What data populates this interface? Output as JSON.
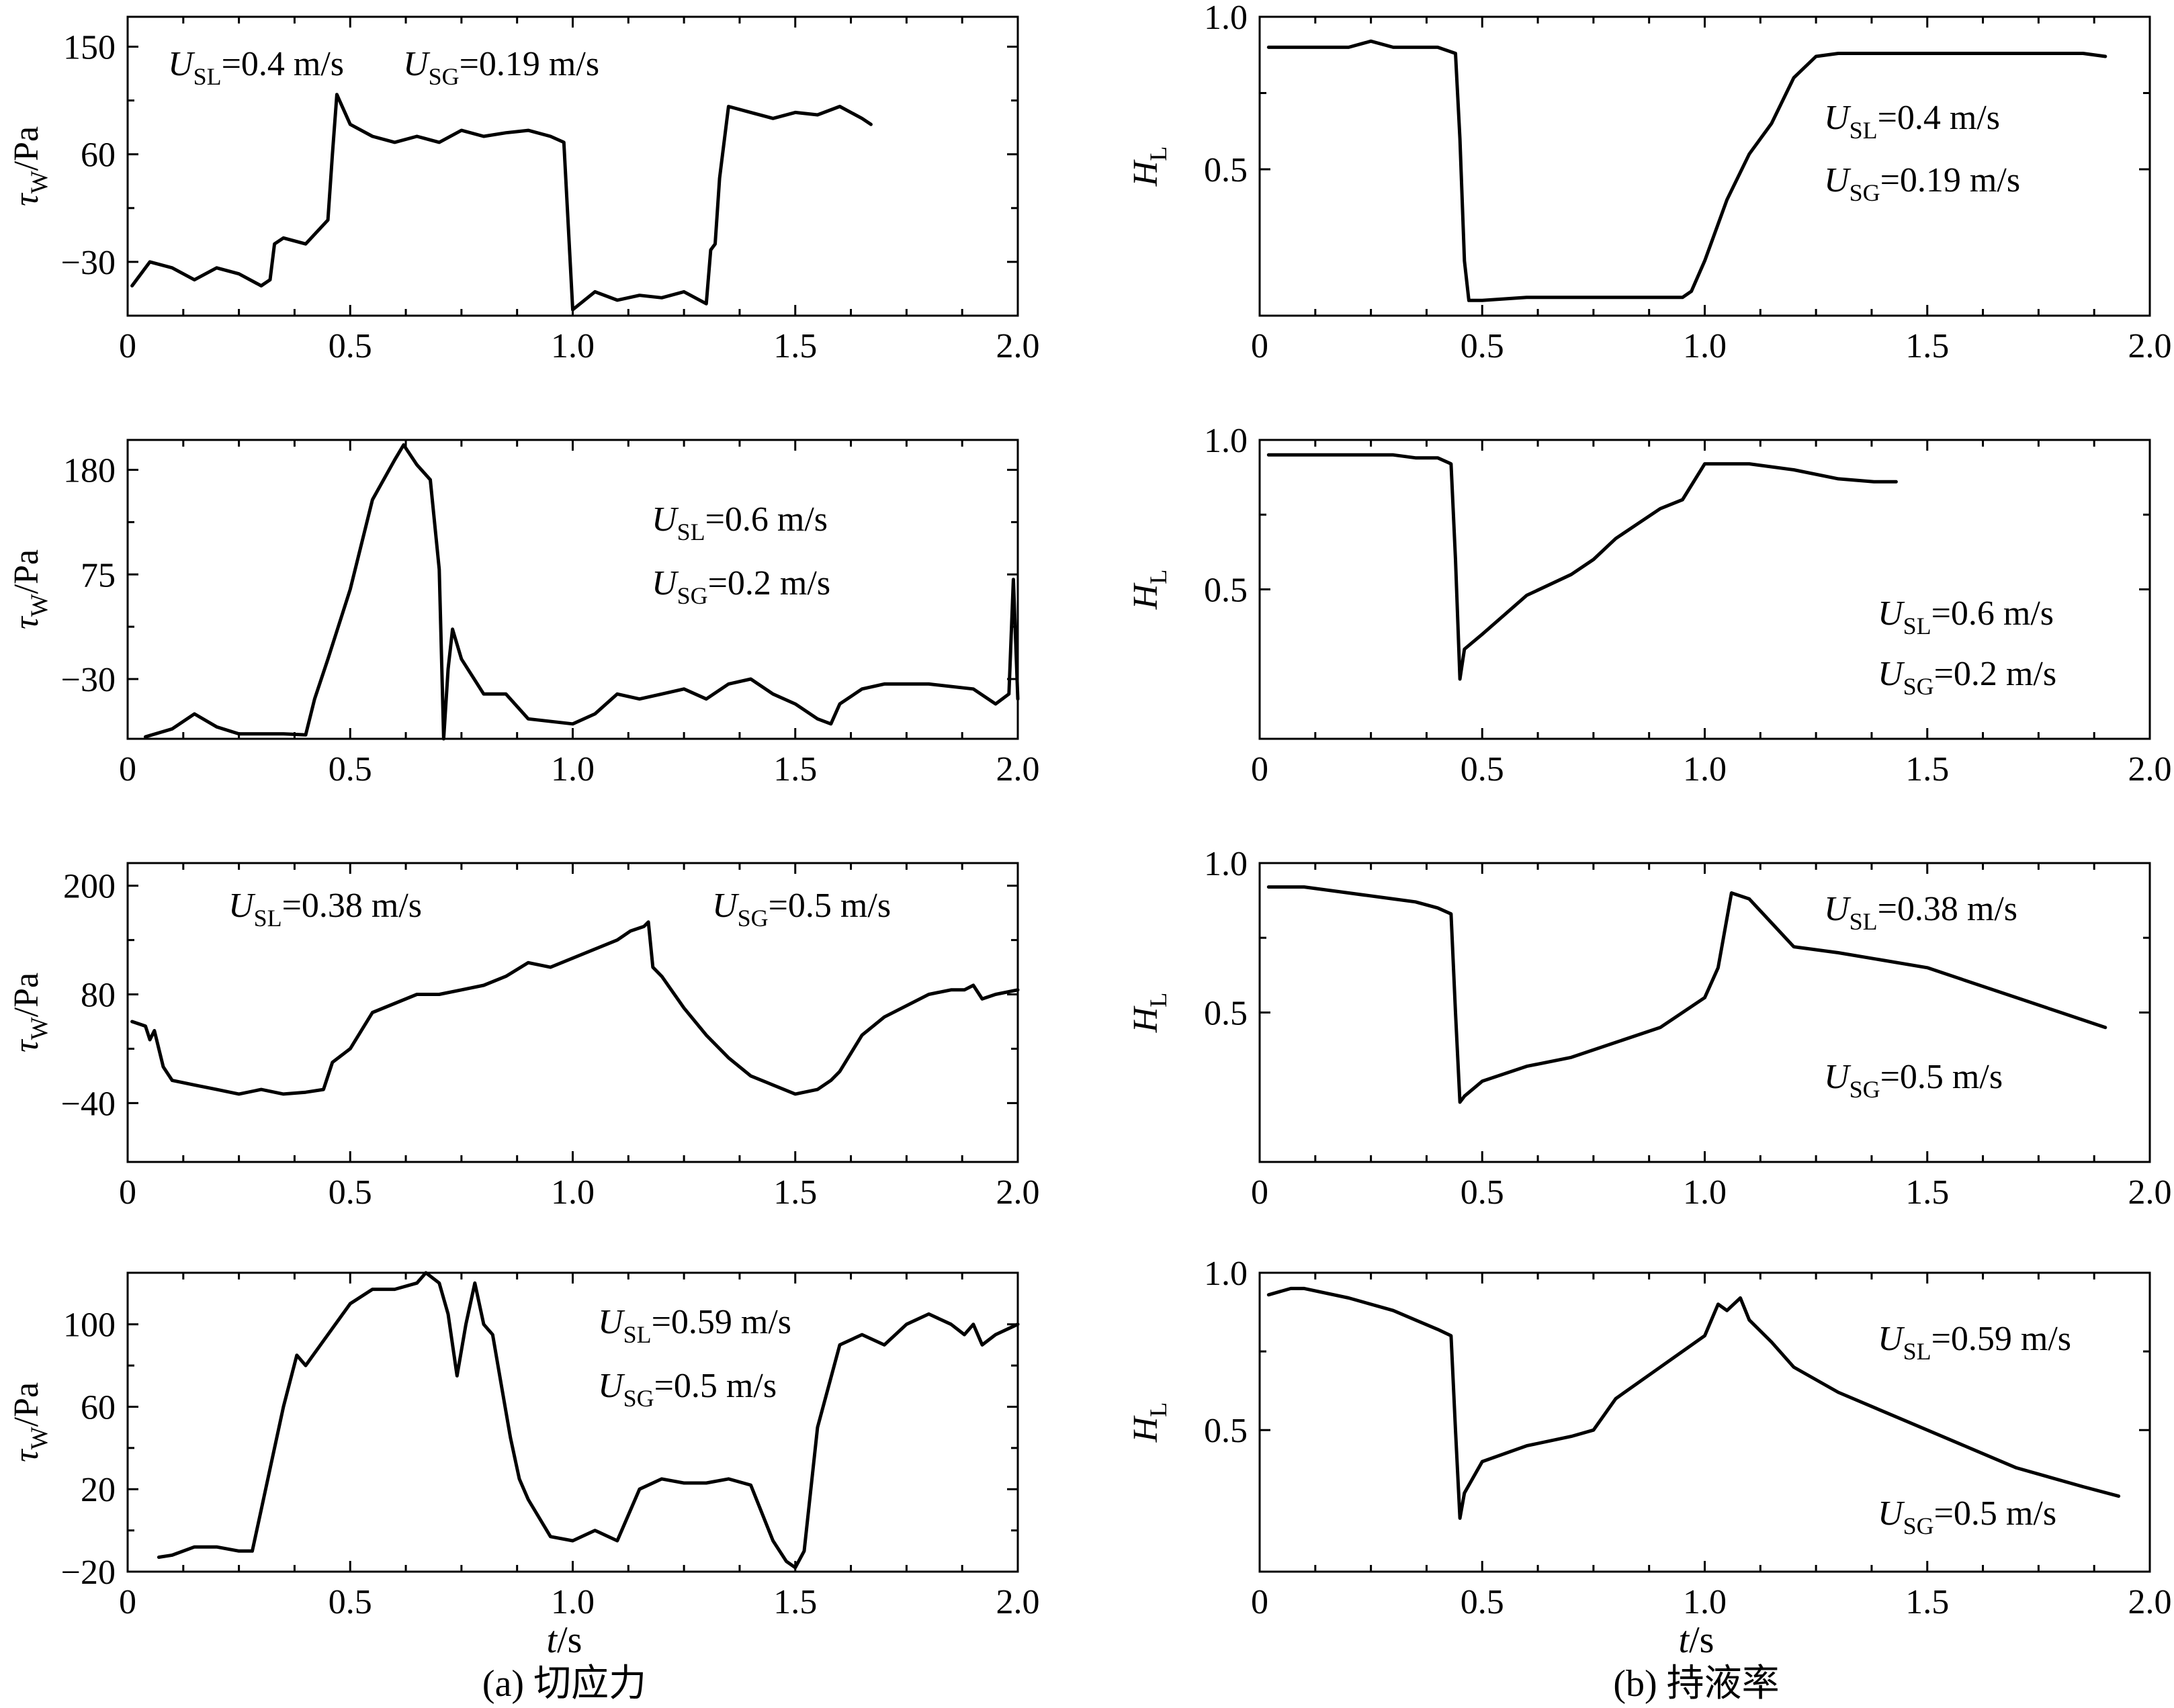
{
  "figure": {
    "xlabel_var": "t",
    "xlabel_unit": "/s",
    "caption_left": "(a) 切应力",
    "caption_right": "(b) 持液率"
  },
  "chart_data": [
    {
      "type": "line",
      "panel": "a1",
      "ylabel_main": "τ",
      "ylabel_sub": "W",
      "ylabel_unit": "/Pa",
      "xlim": [
        0,
        2.0
      ],
      "ylim": [
        -75,
        175
      ],
      "xticks": [
        0,
        0.5,
        1.0,
        1.5,
        2.0
      ],
      "xtick_labels": [
        "0",
        "0.5",
        "1.0",
        "1.5",
        "2.0"
      ],
      "yticks": [
        -30,
        60,
        150
      ],
      "ytick_labels": [
        "−30",
        "60",
        "150"
      ],
      "annotations": [
        {
          "var": "U",
          "sub": "SL",
          "text": "=0.4 m/s",
          "pos": "top-left"
        },
        {
          "var": "U",
          "sub": "SG",
          "text": "=0.19 m/s",
          "pos": "top-center"
        }
      ],
      "x": [
        0.01,
        0.05,
        0.1,
        0.15,
        0.2,
        0.25,
        0.3,
        0.32,
        0.33,
        0.35,
        0.4,
        0.45,
        0.46,
        0.47,
        0.5,
        0.55,
        0.6,
        0.65,
        0.7,
        0.75,
        0.8,
        0.85,
        0.9,
        0.95,
        0.98,
        0.99,
        1.0,
        1.05,
        1.1,
        1.15,
        1.2,
        1.25,
        1.3,
        1.31,
        1.32,
        1.33,
        1.35,
        1.4,
        1.45,
        1.5,
        1.55,
        1.6,
        1.65,
        1.67
      ],
      "y": [
        -50,
        -30,
        -35,
        -45,
        -35,
        -40,
        -50,
        -45,
        -15,
        -10,
        -15,
        5,
        60,
        110,
        85,
        75,
        70,
        75,
        70,
        80,
        75,
        78,
        80,
        75,
        70,
        0,
        -70,
        -55,
        -62,
        -58,
        -60,
        -55,
        -65,
        -20,
        -15,
        40,
        100,
        95,
        90,
        95,
        93,
        100,
        90,
        85
      ]
    },
    {
      "type": "line",
      "panel": "a2",
      "ylabel_main": "τ",
      "ylabel_sub": "W",
      "ylabel_unit": "/Pa",
      "xlim": [
        0,
        2.0
      ],
      "ylim": [
        -90,
        210
      ],
      "xticks": [
        0,
        0.5,
        1.0,
        1.5,
        2.0
      ],
      "xtick_labels": [
        "0",
        "0.5",
        "1.0",
        "1.5",
        "2.0"
      ],
      "yticks": [
        -30,
        75,
        180
      ],
      "ytick_labels": [
        "−30",
        "75",
        "180"
      ],
      "annotations": [
        {
          "var": "U",
          "sub": "SL",
          "text": "=0.6 m/s",
          "pos": "upper-right"
        },
        {
          "var": "U",
          "sub": "SG",
          "text": "=0.2 m/s",
          "pos": "upper-right"
        }
      ],
      "x": [
        0.04,
        0.1,
        0.15,
        0.2,
        0.25,
        0.3,
        0.35,
        0.4,
        0.42,
        0.45,
        0.5,
        0.55,
        0.6,
        0.62,
        0.65,
        0.68,
        0.7,
        0.71,
        0.72,
        0.73,
        0.75,
        0.8,
        0.85,
        0.9,
        1.0,
        1.05,
        1.1,
        1.15,
        1.2,
        1.25,
        1.3,
        1.35,
        1.4,
        1.45,
        1.5,
        1.55,
        1.58,
        1.6,
        1.65,
        1.7,
        1.8,
        1.9,
        1.95,
        1.98,
        1.99,
        2.0
      ],
      "y": [
        -88,
        -80,
        -65,
        -78,
        -85,
        -85,
        -85,
        -86,
        -50,
        -10,
        60,
        150,
        190,
        205,
        185,
        170,
        80,
        -90,
        -20,
        20,
        -10,
        -45,
        -45,
        -70,
        -75,
        -65,
        -45,
        -50,
        -45,
        -40,
        -50,
        -35,
        -30,
        -45,
        -55,
        -70,
        -75,
        -55,
        -40,
        -35,
        -35,
        -40,
        -55,
        -45,
        70,
        -50
      ]
    },
    {
      "type": "line",
      "panel": "a3",
      "ylabel_main": "τ",
      "ylabel_sub": "W",
      "ylabel_unit": "/Pa",
      "xlim": [
        0,
        2.0
      ],
      "ylim": [
        -105,
        225
      ],
      "xticks": [
        0,
        0.5,
        1.0,
        1.5,
        2.0
      ],
      "xtick_labels": [
        "0",
        "0.5",
        "1.0",
        "1.5",
        "2.0"
      ],
      "yticks": [
        -40,
        80,
        200
      ],
      "ytick_labels": [
        "−40",
        "80",
        "200"
      ],
      "annotations": [
        {
          "var": "U",
          "sub": "SL",
          "text": "=0.38 m/s",
          "pos": "top-left"
        },
        {
          "var": "U",
          "sub": "SG",
          "text": "=0.5 m/s",
          "pos": "top-right"
        }
      ],
      "x": [
        0.01,
        0.04,
        0.05,
        0.06,
        0.08,
        0.1,
        0.15,
        0.2,
        0.25,
        0.3,
        0.35,
        0.4,
        0.44,
        0.46,
        0.5,
        0.55,
        0.6,
        0.65,
        0.7,
        0.75,
        0.8,
        0.85,
        0.9,
        0.95,
        1.0,
        1.05,
        1.1,
        1.13,
        1.16,
        1.17,
        1.18,
        1.2,
        1.25,
        1.3,
        1.35,
        1.4,
        1.45,
        1.5,
        1.55,
        1.58,
        1.6,
        1.65,
        1.7,
        1.8,
        1.85,
        1.88,
        1.9,
        1.92,
        1.95,
        2.0
      ],
      "y": [
        50,
        45,
        30,
        40,
        0,
        -15,
        -20,
        -25,
        -30,
        -25,
        -30,
        -28,
        -25,
        5,
        20,
        60,
        70,
        80,
        80,
        85,
        90,
        100,
        115,
        110,
        120,
        130,
        140,
        150,
        155,
        160,
        110,
        100,
        65,
        35,
        10,
        -10,
        -20,
        -30,
        -25,
        -15,
        -5,
        35,
        55,
        80,
        85,
        85,
        90,
        75,
        80,
        85
      ]
    },
    {
      "type": "line",
      "panel": "a4",
      "ylabel_main": "τ",
      "ylabel_sub": "W",
      "ylabel_unit": "/Pa",
      "xlim": [
        0,
        2.0
      ],
      "ylim": [
        -20,
        125
      ],
      "xticks": [
        0,
        0.5,
        1.0,
        1.5,
        2.0
      ],
      "xtick_labels": [
        "0",
        "0.5",
        "1.0",
        "1.5",
        "2.0"
      ],
      "yticks": [
        -20,
        20,
        60,
        100
      ],
      "ytick_labels": [
        "−20",
        "20",
        "60",
        "100"
      ],
      "annotations": [
        {
          "var": "U",
          "sub": "SL",
          "text": "=0.59 m/s",
          "pos": "upper-right"
        },
        {
          "var": "U",
          "sub": "SG",
          "text": "=0.5 m/s",
          "pos": "upper-right"
        }
      ],
      "x": [
        0.07,
        0.1,
        0.15,
        0.2,
        0.25,
        0.28,
        0.3,
        0.32,
        0.35,
        0.38,
        0.4,
        0.45,
        0.5,
        0.55,
        0.6,
        0.65,
        0.67,
        0.7,
        0.72,
        0.74,
        0.76,
        0.78,
        0.8,
        0.82,
        0.84,
        0.86,
        0.88,
        0.9,
        0.95,
        1.0,
        1.05,
        1.1,
        1.15,
        1.2,
        1.25,
        1.3,
        1.35,
        1.4,
        1.45,
        1.48,
        1.5,
        1.52,
        1.55,
        1.6,
        1.65,
        1.7,
        1.75,
        1.8,
        1.85,
        1.88,
        1.9,
        1.92,
        1.95,
        2.0
      ],
      "y": [
        -13,
        -12,
        -8,
        -8,
        -10,
        -10,
        10,
        30,
        60,
        85,
        80,
        95,
        110,
        117,
        117,
        120,
        125,
        120,
        105,
        75,
        100,
        120,
        100,
        95,
        70,
        45,
        25,
        15,
        -3,
        -5,
        0,
        -5,
        20,
        25,
        23,
        23,
        25,
        22,
        -5,
        -15,
        -18,
        -10,
        50,
        90,
        95,
        90,
        100,
        105,
        100,
        95,
        100,
        90,
        95,
        100
      ]
    },
    {
      "type": "line",
      "panel": "b1",
      "ylabel_main": "H",
      "ylabel_sub": "L",
      "ylabel_unit": "",
      "xlim": [
        0,
        2.0
      ],
      "ylim": [
        0.02,
        1.0
      ],
      "xticks": [
        0,
        0.5,
        1.0,
        1.5,
        2.0
      ],
      "xtick_labels": [
        "0",
        "0.5",
        "1.0",
        "1.5",
        "2.0"
      ],
      "yticks": [
        0.5,
        1.0
      ],
      "ytick_labels": [
        "0.5",
        "1.0"
      ],
      "annotations": [
        {
          "var": "U",
          "sub": "SL",
          "text": "=0.4 m/s",
          "pos": "right"
        },
        {
          "var": "U",
          "sub": "SG",
          "text": "=0.19 m/s",
          "pos": "right"
        }
      ],
      "x": [
        0.02,
        0.1,
        0.2,
        0.25,
        0.3,
        0.35,
        0.4,
        0.44,
        0.45,
        0.46,
        0.47,
        0.5,
        0.6,
        0.7,
        0.8,
        0.9,
        0.95,
        0.97,
        1.0,
        1.05,
        1.1,
        1.15,
        1.2,
        1.25,
        1.3,
        1.5,
        1.7,
        1.85,
        1.9
      ],
      "y": [
        0.9,
        0.9,
        0.9,
        0.92,
        0.9,
        0.9,
        0.9,
        0.88,
        0.6,
        0.2,
        0.07,
        0.07,
        0.08,
        0.08,
        0.08,
        0.08,
        0.08,
        0.1,
        0.2,
        0.4,
        0.55,
        0.65,
        0.8,
        0.87,
        0.88,
        0.88,
        0.88,
        0.88,
        0.87
      ]
    },
    {
      "type": "line",
      "panel": "b2",
      "ylabel_main": "H",
      "ylabel_sub": "L",
      "ylabel_unit": "",
      "xlim": [
        0,
        2.0
      ],
      "ylim": [
        0.0,
        1.0
      ],
      "xticks": [
        0,
        0.5,
        1.0,
        1.5,
        2.0
      ],
      "xtick_labels": [
        "0",
        "0.5",
        "1.0",
        "1.5",
        "2.0"
      ],
      "yticks": [
        0.5,
        1.0
      ],
      "ytick_labels": [
        "0.5",
        "1.0"
      ],
      "annotations": [
        {
          "var": "U",
          "sub": "SL",
          "text": "=0.6 m/s",
          "pos": "lower-right"
        },
        {
          "var": "U",
          "sub": "SG",
          "text": "=0.2 m/s",
          "pos": "lower-right"
        }
      ],
      "x": [
        0.02,
        0.1,
        0.2,
        0.3,
        0.35,
        0.4,
        0.43,
        0.44,
        0.45,
        0.46,
        0.5,
        0.6,
        0.7,
        0.75,
        0.8,
        0.85,
        0.9,
        0.95,
        1.0,
        1.05,
        1.1,
        1.2,
        1.3,
        1.38,
        1.43
      ],
      "y": [
        0.95,
        0.95,
        0.95,
        0.95,
        0.94,
        0.94,
        0.92,
        0.6,
        0.2,
        0.3,
        0.35,
        0.48,
        0.55,
        0.6,
        0.67,
        0.72,
        0.77,
        0.8,
        0.92,
        0.92,
        0.92,
        0.9,
        0.87,
        0.86,
        0.86
      ]
    },
    {
      "type": "line",
      "panel": "b3",
      "ylabel_main": "H",
      "ylabel_sub": "L",
      "ylabel_unit": "",
      "xlim": [
        0,
        2.0
      ],
      "ylim": [
        0.0,
        1.0
      ],
      "xticks": [
        0,
        0.5,
        1.0,
        1.5,
        2.0
      ],
      "xtick_labels": [
        "0",
        "0.5",
        "1.0",
        "1.5",
        "2.0"
      ],
      "yticks": [
        0.5,
        1.0
      ],
      "ytick_labels": [
        "0.5",
        "1.0"
      ],
      "annotations": [
        {
          "var": "U",
          "sub": "SL",
          "text": "=0.38 m/s",
          "pos": "upper-right"
        },
        {
          "var": "U",
          "sub": "SG",
          "text": "=0.5 m/s",
          "pos": "lower-right"
        }
      ],
      "x": [
        0.02,
        0.1,
        0.2,
        0.3,
        0.35,
        0.4,
        0.43,
        0.44,
        0.45,
        0.46,
        0.5,
        0.6,
        0.7,
        0.8,
        0.9,
        1.0,
        1.03,
        1.06,
        1.1,
        1.15,
        1.2,
        1.3,
        1.5,
        1.7,
        1.8,
        1.9
      ],
      "y": [
        0.92,
        0.92,
        0.9,
        0.88,
        0.87,
        0.85,
        0.83,
        0.5,
        0.2,
        0.22,
        0.27,
        0.32,
        0.35,
        0.4,
        0.45,
        0.55,
        0.65,
        0.9,
        0.88,
        0.8,
        0.72,
        0.7,
        0.65,
        0.55,
        0.5,
        0.45
      ]
    },
    {
      "type": "line",
      "panel": "b4",
      "ylabel_main": "H",
      "ylabel_sub": "L",
      "ylabel_unit": "",
      "xlim": [
        0,
        2.0
      ],
      "ylim": [
        0.05,
        1.0
      ],
      "xticks": [
        0,
        0.5,
        1.0,
        1.5,
        2.0
      ],
      "xtick_labels": [
        "0",
        "0.5",
        "1.0",
        "1.5",
        "2.0"
      ],
      "yticks": [
        0.5,
        1.0
      ],
      "ytick_labels": [
        "0.5",
        "1.0"
      ],
      "annotations": [
        {
          "var": "U",
          "sub": "SL",
          "text": "=0.59 m/s",
          "pos": "upper-right"
        },
        {
          "var": "U",
          "sub": "SG",
          "text": "=0.5 m/s",
          "pos": "lower-right"
        }
      ],
      "x": [
        0.02,
        0.07,
        0.1,
        0.2,
        0.3,
        0.35,
        0.4,
        0.43,
        0.44,
        0.45,
        0.46,
        0.5,
        0.6,
        0.7,
        0.75,
        0.8,
        0.9,
        1.0,
        1.03,
        1.05,
        1.08,
        1.1,
        1.15,
        1.2,
        1.3,
        1.5,
        1.7,
        1.85,
        1.93
      ],
      "y": [
        0.93,
        0.95,
        0.95,
        0.92,
        0.88,
        0.85,
        0.82,
        0.8,
        0.5,
        0.22,
        0.3,
        0.4,
        0.45,
        0.48,
        0.5,
        0.6,
        0.7,
        0.8,
        0.9,
        0.88,
        0.92,
        0.85,
        0.78,
        0.7,
        0.62,
        0.5,
        0.38,
        0.32,
        0.29
      ]
    }
  ]
}
